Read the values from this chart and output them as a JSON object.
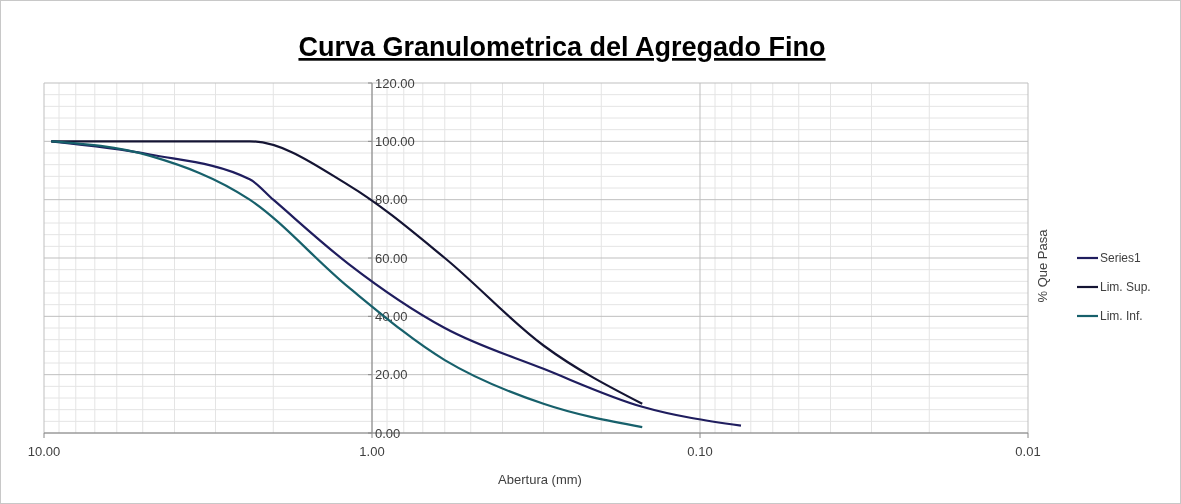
{
  "chart_data": {
    "type": "line",
    "title": "Curva Granulometrica del Agregado Fino",
    "xlabel": "Abertura (mm)",
    "ylabel": "% Que Pasa",
    "log": "x",
    "xlim": [
      10,
      0.01
    ],
    "xticks": [
      {
        "value": 10,
        "label": "10.00"
      },
      {
        "value": 1,
        "label": "1.00"
      },
      {
        "value": 0.1,
        "label": "0.10"
      },
      {
        "value": 0.01,
        "label": "0.01"
      }
    ],
    "ylim": [
      0,
      120
    ],
    "yticks": [
      {
        "value": 0,
        "label": "0.00"
      },
      {
        "value": 20,
        "label": "20.00"
      },
      {
        "value": 40,
        "label": "40.00"
      },
      {
        "value": 60,
        "label": "60.00"
      },
      {
        "value": 80,
        "label": "80.00"
      },
      {
        "value": 100,
        "label": "100.00"
      },
      {
        "value": 120,
        "label": "120.00"
      }
    ],
    "grid": true,
    "legend": "right",
    "marker": "none",
    "line_style": "solid",
    "series": [
      {
        "name": "Series1",
        "color": "#1f1d5e",
        "x": [
          9.5,
          4.75,
          2.36,
          2.0,
          1.18,
          0.6,
          0.3,
          0.15,
          0.075
        ],
        "values": [
          100,
          95.5,
          87,
          80,
          58,
          36,
          22,
          9,
          2.5
        ]
      },
      {
        "name": "Lim. Sup.",
        "color": "#141433",
        "x": [
          9.5,
          4.75,
          2.36,
          1.18,
          0.6,
          0.3,
          0.15
        ],
        "values": [
          100,
          100,
          100,
          85,
          60,
          30,
          10
        ]
      },
      {
        "name": "Lim. Inf.",
        "color": "#17606b",
        "x": [
          9.5,
          4.75,
          2.36,
          1.18,
          0.6,
          0.3,
          0.15
        ],
        "values": [
          100,
          95,
          80,
          50,
          25,
          10,
          2
        ]
      }
    ]
  }
}
